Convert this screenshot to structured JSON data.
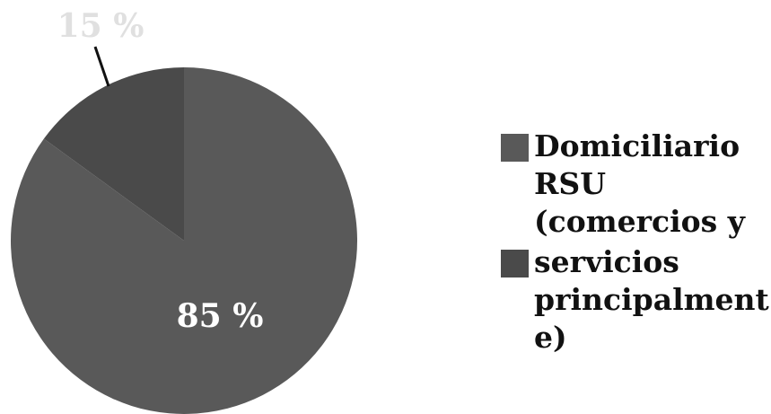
{
  "chart_data": {
    "type": "pie",
    "categories": [
      "Domiciliario RSU (comercios y",
      "servicios principalmente)"
    ],
    "values": [
      85,
      15
    ],
    "value_labels": [
      "85 %",
      "15 %"
    ],
    "colors": [
      "#595959",
      "#4a4a4a"
    ]
  }
}
